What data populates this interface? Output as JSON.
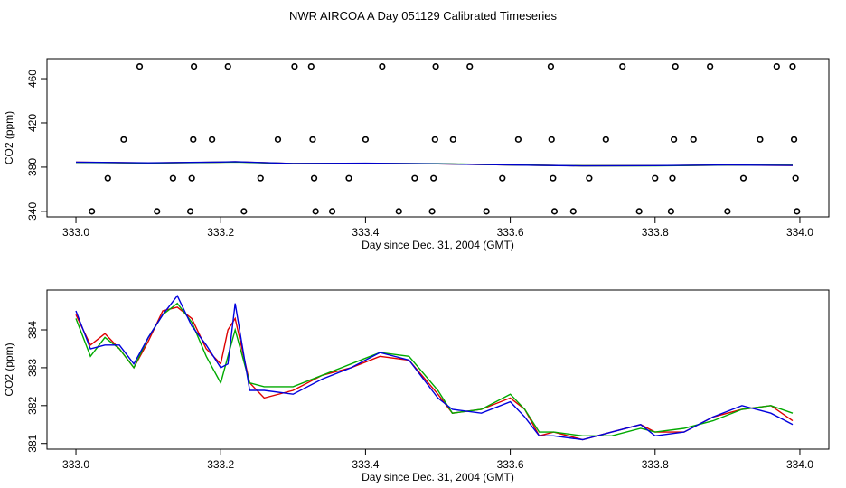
{
  "page": {
    "title": "NWR AIRCOA A  Day 051129  Calibrated Timeseries"
  },
  "chart_data": [
    {
      "type": "scatter",
      "xlabel": "Day since Dec. 31, 2004 (GMT)",
      "ylabel": "CO2 (ppm)",
      "xlim": [
        332.96,
        334.04
      ],
      "ylim": [
        335,
        478
      ],
      "xticks": [
        333.0,
        333.2,
        333.4,
        333.6,
        333.8,
        334.0
      ],
      "xtick_labels": [
        "333.0",
        "333.2",
        "333.4",
        "333.6",
        "333.8",
        "334.0"
      ],
      "yticks": [
        340,
        380,
        420,
        460
      ],
      "ytick_labels": [
        "340",
        "380",
        "420",
        "460"
      ],
      "grid": false,
      "points": [
        {
          "x": 333.022,
          "y": 340
        },
        {
          "x": 333.044,
          "y": 370
        },
        {
          "x": 333.066,
          "y": 405
        },
        {
          "x": 333.088,
          "y": 471
        },
        {
          "x": 333.112,
          "y": 340
        },
        {
          "x": 333.134,
          "y": 370
        },
        {
          "x": 333.158,
          "y": 340
        },
        {
          "x": 333.16,
          "y": 370
        },
        {
          "x": 333.162,
          "y": 405
        },
        {
          "x": 333.163,
          "y": 471
        },
        {
          "x": 333.188,
          "y": 405
        },
        {
          "x": 333.21,
          "y": 471
        },
        {
          "x": 333.232,
          "y": 340
        },
        {
          "x": 333.255,
          "y": 370
        },
        {
          "x": 333.279,
          "y": 405
        },
        {
          "x": 333.302,
          "y": 471
        },
        {
          "x": 333.325,
          "y": 471
        },
        {
          "x": 333.327,
          "y": 405
        },
        {
          "x": 333.329,
          "y": 370
        },
        {
          "x": 333.331,
          "y": 340
        },
        {
          "x": 333.354,
          "y": 340
        },
        {
          "x": 333.377,
          "y": 370
        },
        {
          "x": 333.4,
          "y": 405
        },
        {
          "x": 333.423,
          "y": 471
        },
        {
          "x": 333.446,
          "y": 340
        },
        {
          "x": 333.468,
          "y": 370
        },
        {
          "x": 333.492,
          "y": 340
        },
        {
          "x": 333.494,
          "y": 370
        },
        {
          "x": 333.496,
          "y": 405
        },
        {
          "x": 333.497,
          "y": 471
        },
        {
          "x": 333.521,
          "y": 405
        },
        {
          "x": 333.544,
          "y": 471
        },
        {
          "x": 333.567,
          "y": 340
        },
        {
          "x": 333.589,
          "y": 370
        },
        {
          "x": 333.611,
          "y": 405
        },
        {
          "x": 333.656,
          "y": 471
        },
        {
          "x": 333.657,
          "y": 405
        },
        {
          "x": 333.659,
          "y": 370
        },
        {
          "x": 333.661,
          "y": 340
        },
        {
          "x": 333.687,
          "y": 340
        },
        {
          "x": 333.709,
          "y": 370
        },
        {
          "x": 333.732,
          "y": 405
        },
        {
          "x": 333.755,
          "y": 471
        },
        {
          "x": 333.778,
          "y": 340
        },
        {
          "x": 333.8,
          "y": 370
        },
        {
          "x": 333.822,
          "y": 340
        },
        {
          "x": 333.824,
          "y": 370
        },
        {
          "x": 333.826,
          "y": 405
        },
        {
          "x": 333.828,
          "y": 471
        },
        {
          "x": 333.853,
          "y": 405
        },
        {
          "x": 333.876,
          "y": 471
        },
        {
          "x": 333.9,
          "y": 340
        },
        {
          "x": 333.922,
          "y": 370
        },
        {
          "x": 333.945,
          "y": 405
        },
        {
          "x": 333.968,
          "y": 471
        },
        {
          "x": 333.99,
          "y": 471
        },
        {
          "x": 333.992,
          "y": 405
        },
        {
          "x": 333.994,
          "y": 370
        },
        {
          "x": 333.996,
          "y": 340
        }
      ],
      "series": [
        {
          "color": "#ff0000",
          "x": [
            333.0,
            333.1,
            333.2,
            333.22,
            333.3,
            333.4,
            333.5,
            333.6,
            333.7,
            333.8,
            333.9,
            333.99
          ],
          "y": [
            384.4,
            383.8,
            384.5,
            384.8,
            383.3,
            383.4,
            383.0,
            382.0,
            381.2,
            381.3,
            381.8,
            381.6
          ]
        },
        {
          "color": "#00bb00",
          "x": [
            333.0,
            333.1,
            333.2,
            333.22,
            333.3,
            333.4,
            333.5,
            333.6,
            333.7,
            333.8,
            333.9,
            333.99
          ],
          "y": [
            384.3,
            383.7,
            384.4,
            384.6,
            383.2,
            383.4,
            383.1,
            382.0,
            381.2,
            381.2,
            381.8,
            381.7
          ]
        },
        {
          "color": "#0000cc",
          "x": [
            333.0,
            333.1,
            333.2,
            333.22,
            333.3,
            333.4,
            333.5,
            333.6,
            333.7,
            333.8,
            333.9,
            333.99
          ],
          "y": [
            384.5,
            383.9,
            384.6,
            384.9,
            383.3,
            383.5,
            383.0,
            381.9,
            381.1,
            381.3,
            381.9,
            381.5
          ]
        }
      ]
    },
    {
      "type": "line",
      "xlabel": "Day since Dec. 31, 2004 (GMT)",
      "ylabel": "CO2 (ppm)",
      "xlim": [
        332.96,
        334.04
      ],
      "ylim": [
        380.85,
        385.05
      ],
      "xticks": [
        333.0,
        333.2,
        333.4,
        333.6,
        333.8,
        334.0
      ],
      "xtick_labels": [
        "333.0",
        "333.2",
        "333.4",
        "333.6",
        "333.8",
        "334.0"
      ],
      "yticks": [
        381,
        382,
        383,
        384
      ],
      "ytick_labels": [
        "381",
        "382",
        "383",
        "384"
      ],
      "grid": false,
      "x": [
        333.0,
        333.02,
        333.04,
        333.06,
        333.08,
        333.1,
        333.12,
        333.14,
        333.16,
        333.18,
        333.2,
        333.21,
        333.22,
        333.24,
        333.26,
        333.3,
        333.34,
        333.38,
        333.42,
        333.46,
        333.5,
        333.52,
        333.56,
        333.6,
        333.62,
        333.64,
        333.66,
        333.7,
        333.74,
        333.78,
        333.8,
        333.84,
        333.88,
        333.92,
        333.96,
        333.99
      ],
      "series": [
        {
          "color": "#dd0000",
          "values": [
            384.4,
            383.6,
            383.9,
            383.5,
            383.0,
            383.7,
            384.5,
            384.6,
            384.3,
            383.5,
            383.1,
            384.0,
            384.3,
            382.6,
            382.2,
            382.4,
            382.8,
            383.0,
            383.3,
            383.2,
            382.3,
            381.8,
            381.9,
            382.2,
            381.9,
            381.2,
            381.3,
            381.1,
            381.3,
            381.5,
            381.3,
            381.3,
            381.7,
            381.9,
            382.0,
            381.6
          ]
        },
        {
          "color": "#00aa00",
          "values": [
            384.3,
            383.3,
            383.8,
            383.5,
            383.0,
            383.8,
            384.4,
            384.7,
            384.2,
            383.3,
            382.6,
            383.3,
            384.0,
            382.6,
            382.5,
            382.5,
            382.8,
            383.1,
            383.4,
            383.3,
            382.4,
            381.8,
            381.9,
            382.3,
            381.9,
            381.3,
            381.3,
            381.2,
            381.2,
            381.4,
            381.3,
            381.4,
            381.6,
            381.9,
            382.0,
            381.8
          ]
        },
        {
          "color": "#0000dd",
          "values": [
            384.5,
            383.5,
            383.6,
            383.6,
            383.1,
            383.8,
            384.4,
            384.9,
            384.1,
            383.6,
            383.0,
            383.1,
            384.7,
            382.4,
            382.4,
            382.3,
            382.7,
            383.0,
            383.4,
            383.2,
            382.2,
            381.9,
            381.8,
            382.1,
            381.7,
            381.2,
            381.2,
            381.1,
            381.3,
            381.5,
            381.2,
            381.3,
            381.7,
            382.0,
            381.8,
            381.5
          ]
        }
      ]
    }
  ]
}
